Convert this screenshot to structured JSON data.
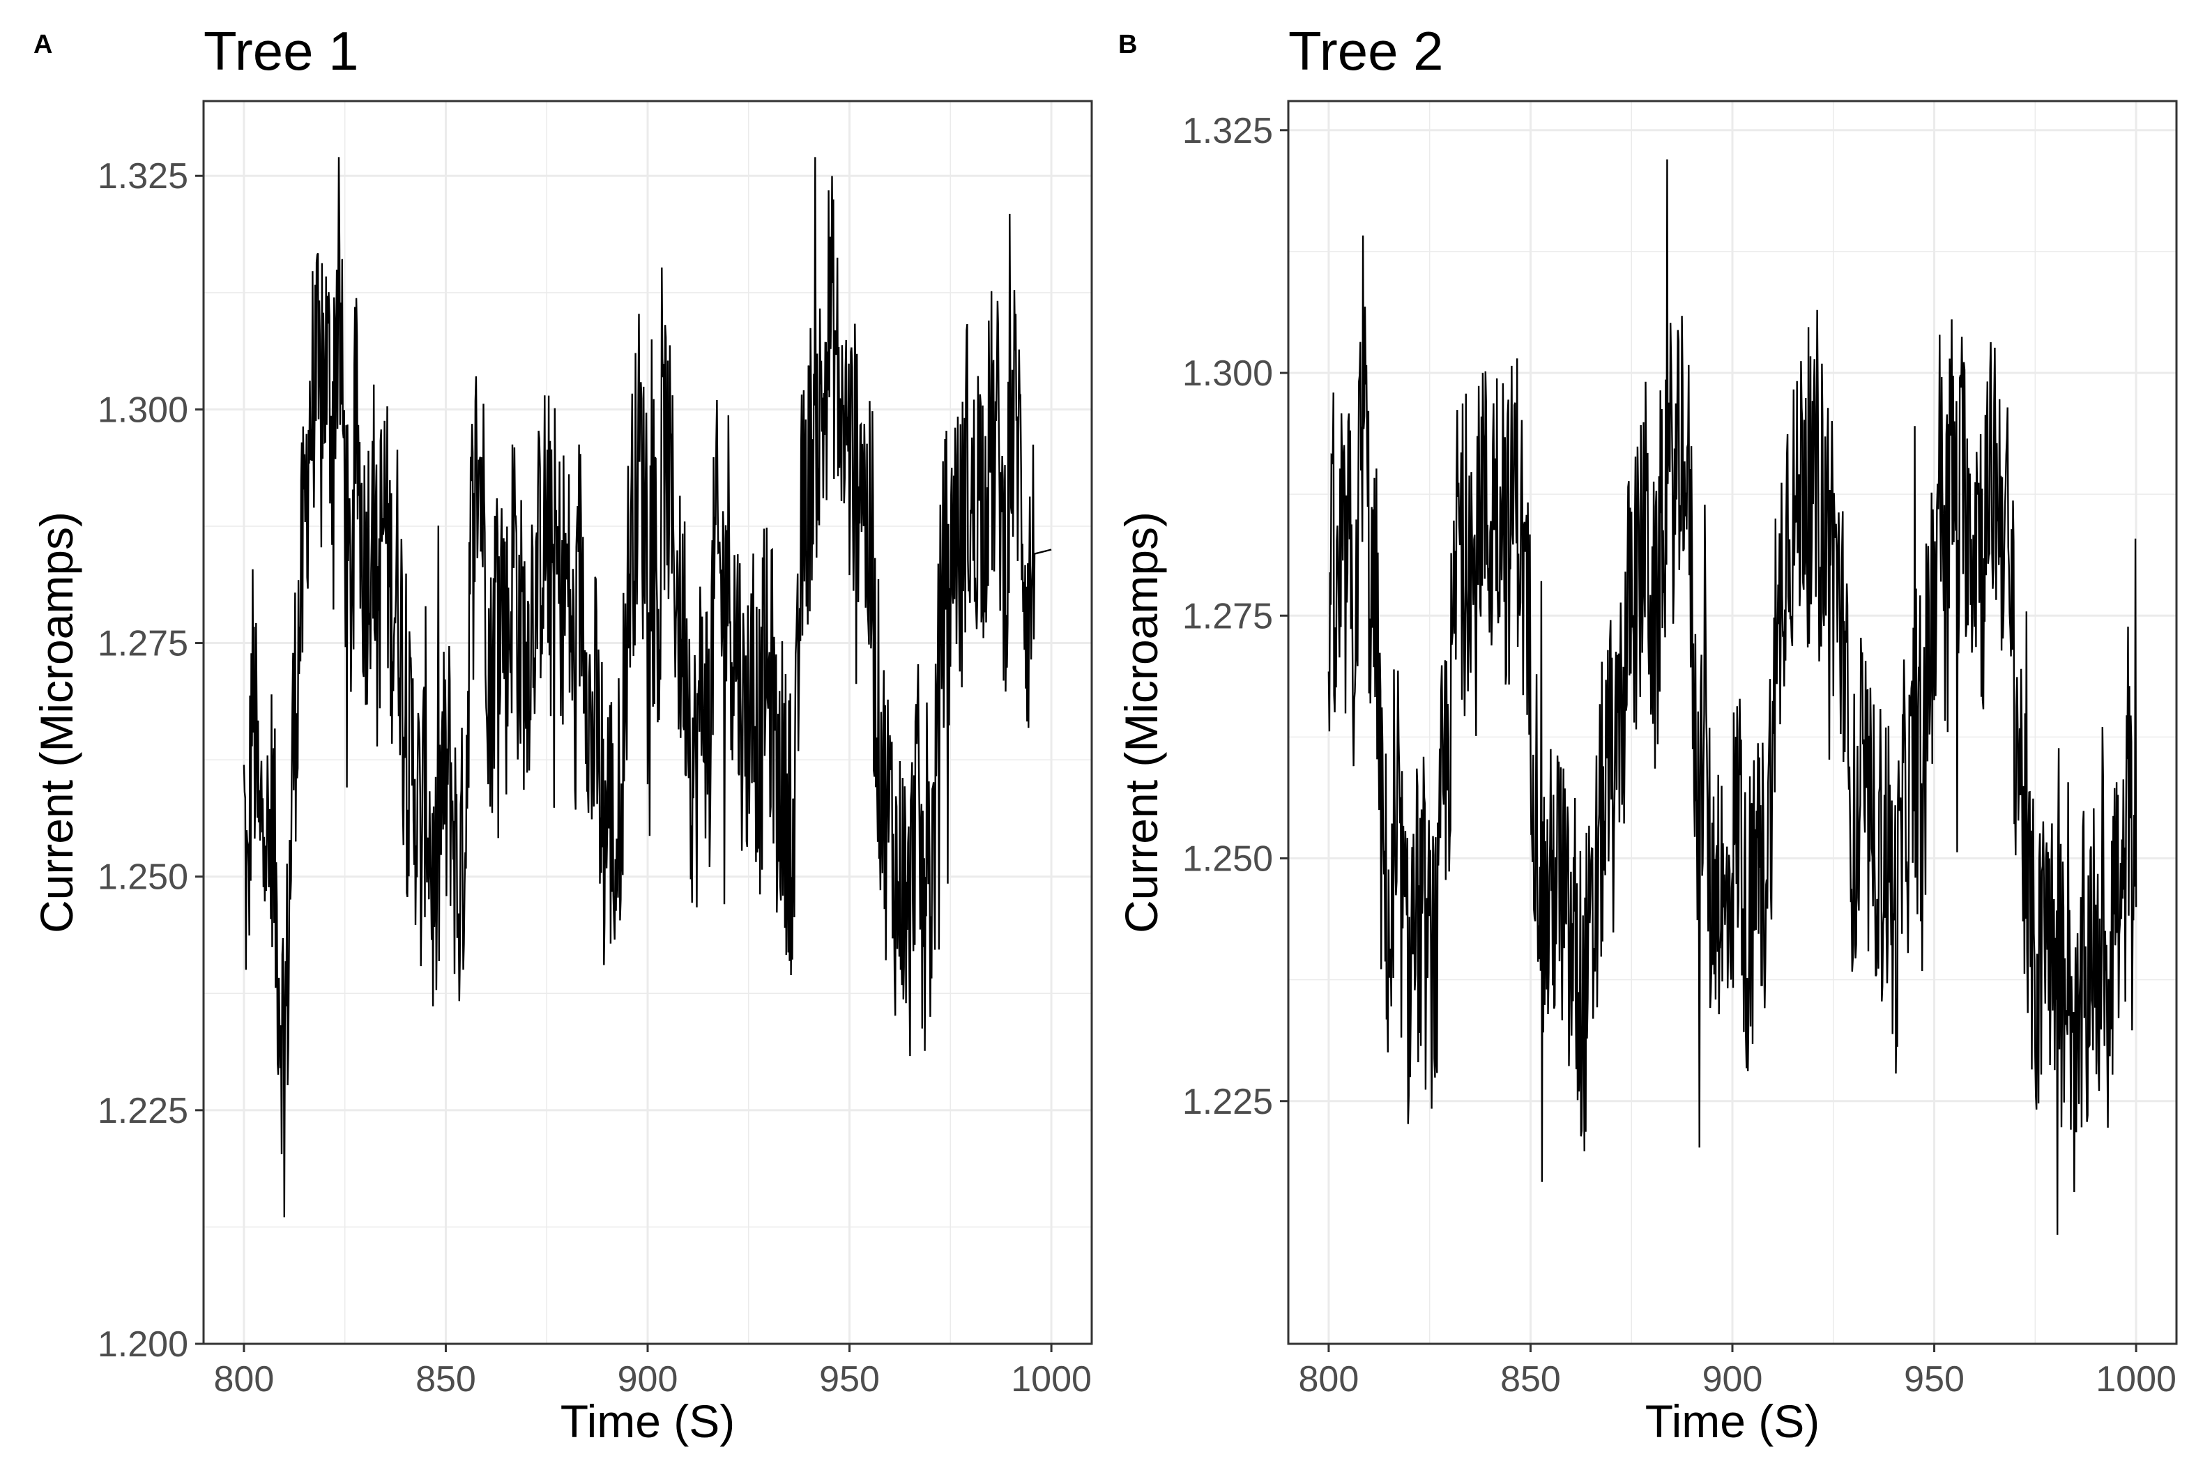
{
  "figure": {
    "panels": [
      "A",
      "B"
    ]
  },
  "colors": {
    "line": "#000000",
    "grid": "#ebebeb",
    "axis_text": "#4d4d4d",
    "title": "#000000",
    "border": "#333333"
  },
  "chart_data": [
    {
      "type": "line",
      "panel_label": "A",
      "title": "Tree 1",
      "xlabel": "Time (S)",
      "ylabel": "Current (Microamps)",
      "xlim": [
        790,
        1010
      ],
      "ylim": [
        1.2,
        1.333
      ],
      "x_ticks": [
        800,
        850,
        900,
        950,
        1000
      ],
      "x_tick_labels": [
        "800",
        "850",
        "900",
        "950",
        "1000"
      ],
      "y_ticks": [
        1.2,
        1.225,
        1.25,
        1.275,
        1.3,
        1.325
      ],
      "y_tick_labels": [
        "1.200",
        "1.225",
        "1.250",
        "1.275",
        "1.300",
        "1.325"
      ],
      "grid": true,
      "series": [
        {
          "name": "Current",
          "x_start": 800,
          "x_end": 1000,
          "x_step": 1,
          "values": [
            1.257,
            1.244,
            1.271,
            1.262,
            1.251,
            1.266,
            1.249,
            1.258,
            1.246,
            1.238,
            1.232,
            1.241,
            1.262,
            1.271,
            1.279,
            1.285,
            1.298,
            1.301,
            1.303,
            1.297,
            1.306,
            1.302,
            1.299,
            1.311,
            1.306,
            1.291,
            1.279,
            1.284,
            1.299,
            1.288,
            1.282,
            1.286,
            1.291,
            1.277,
            1.286,
            1.289,
            1.282,
            1.279,
            1.282,
            1.276,
            1.265,
            1.261,
            1.262,
            1.258,
            1.251,
            1.263,
            1.255,
            1.247,
            1.249,
            1.261,
            1.258,
            1.262,
            1.255,
            1.248,
            1.251,
            1.258,
            1.283,
            1.289,
            1.296,
            1.291,
            1.283,
            1.268,
            1.276,
            1.286,
            1.281,
            1.274,
            1.279,
            1.288,
            1.275,
            1.276,
            1.272,
            1.279,
            1.281,
            1.283,
            1.288,
            1.287,
            1.281,
            1.285,
            1.281,
            1.282,
            1.281,
            1.278,
            1.267,
            1.283,
            1.281,
            1.275,
            1.262,
            1.268,
            1.261,
            1.253,
            1.258,
            1.256,
            1.251,
            1.258,
            1.267,
            1.279,
            1.288,
            1.291,
            1.297,
            1.289,
            1.292,
            1.284,
            1.283,
            1.278,
            1.296,
            1.294,
            1.288,
            1.283,
            1.276,
            1.276,
            1.273,
            1.262,
            1.261,
            1.268,
            1.272,
            1.264,
            1.276,
            1.286,
            1.281,
            1.279,
            1.286,
            1.276,
            1.276,
            1.271,
            1.264,
            1.269,
            1.268,
            1.267,
            1.262,
            1.275,
            1.268,
            1.271,
            1.258,
            1.262,
            1.257,
            1.258,
            1.251,
            1.264,
            1.286,
            1.289,
            1.293,
            1.298,
            1.299,
            1.298,
            1.303,
            1.311,
            1.309,
            1.303,
            1.299,
            1.298,
            1.295,
            1.294,
            1.294,
            1.299,
            1.287,
            1.285,
            1.276,
            1.267,
            1.262,
            1.257,
            1.256,
            1.252,
            1.248,
            1.251,
            1.246,
            1.244,
            1.258,
            1.257,
            1.247,
            1.256,
            1.248,
            1.254,
            1.268,
            1.281,
            1.283,
            1.278,
            1.292,
            1.285,
            1.283,
            1.296,
            1.288,
            1.288,
            1.294,
            1.291,
            1.292,
            1.298,
            1.294,
            1.298,
            1.283,
            1.287,
            1.297,
            1.299,
            1.296,
            1.288,
            1.279,
            1.281,
            1.285
          ]
        }
      ]
    },
    {
      "type": "line",
      "panel_label": "B",
      "title": "Tree 2",
      "xlabel": "Time (S)",
      "ylabel": "Current (Microamps)",
      "xlim": [
        790,
        1010
      ],
      "ylim": [
        1.2,
        1.328
      ],
      "x_ticks": [
        800,
        850,
        900,
        950,
        1000
      ],
      "x_tick_labels": [
        "800",
        "850",
        "900",
        "950",
        "1000"
      ],
      "y_ticks": [
        1.225,
        1.25,
        1.275,
        1.3,
        1.325
      ],
      "y_tick_labels": [
        "1.225",
        "1.250",
        "1.275",
        "1.300",
        "1.325"
      ],
      "grid": true,
      "series": [
        {
          "name": "Current",
          "x_start": 800,
          "x_end": 1000,
          "x_step": 1,
          "values": [
            1.277,
            1.276,
            1.272,
            1.279,
            1.277,
            1.283,
            1.271,
            1.281,
            1.292,
            1.296,
            1.281,
            1.274,
            1.275,
            1.252,
            1.247,
            1.242,
            1.241,
            1.248,
            1.247,
            1.239,
            1.236,
            1.246,
            1.244,
            1.243,
            1.241,
            1.239,
            1.241,
            1.238,
            1.255,
            1.259,
            1.264,
            1.271,
            1.286,
            1.282,
            1.279,
            1.287,
            1.275,
            1.282,
            1.291,
            1.285,
            1.283,
            1.289,
            1.288,
            1.291,
            1.282,
            1.284,
            1.289,
            1.287,
            1.281,
            1.274,
            1.269,
            1.259,
            1.253,
            1.245,
            1.244,
            1.246,
            1.248,
            1.247,
            1.249,
            1.241,
            1.239,
            1.242,
            1.233,
            1.232,
            1.239,
            1.238,
            1.244,
            1.251,
            1.256,
            1.257,
            1.261,
            1.253,
            1.268,
            1.266,
            1.272,
            1.281,
            1.278,
            1.277,
            1.286,
            1.282,
            1.276,
            1.271,
            1.281,
            1.289,
            1.286,
            1.292,
            1.286,
            1.291,
            1.296,
            1.288,
            1.277,
            1.258,
            1.257,
            1.264,
            1.252,
            1.244,
            1.251,
            1.248,
            1.241,
            1.246,
            1.251,
            1.252,
            1.257,
            1.242,
            1.244,
            1.241,
            1.253,
            1.247,
            1.249,
            1.255,
            1.262,
            1.263,
            1.279,
            1.284,
            1.287,
            1.286,
            1.284,
            1.289,
            1.293,
            1.288,
            1.283,
            1.291,
            1.287,
            1.284,
            1.286,
            1.282,
            1.278,
            1.275,
            1.267,
            1.258,
            1.252,
            1.251,
            1.259,
            1.256,
            1.252,
            1.251,
            1.254,
            1.249,
            1.252,
            1.248,
            1.242,
            1.245,
            1.251,
            1.258,
            1.254,
            1.263,
            1.259,
            1.252,
            1.261,
            1.275,
            1.276,
            1.291,
            1.287,
            1.283,
            1.293,
            1.288,
            1.283,
            1.289,
            1.288,
            1.285,
            1.284,
            1.287,
            1.279,
            1.286,
            1.288,
            1.291,
            1.287,
            1.286,
            1.283,
            1.277,
            1.267,
            1.261,
            1.256,
            1.242,
            1.243,
            1.238,
            1.238,
            1.241,
            1.246,
            1.241,
            1.238,
            1.236,
            1.238,
            1.246,
            1.234,
            1.228,
            1.229,
            1.239,
            1.235,
            1.248,
            1.233,
            1.241,
            1.244,
            1.237,
            1.247,
            1.248,
            1.242,
            1.245,
            1.259,
            1.248,
            1.245
          ]
        }
      ]
    }
  ]
}
